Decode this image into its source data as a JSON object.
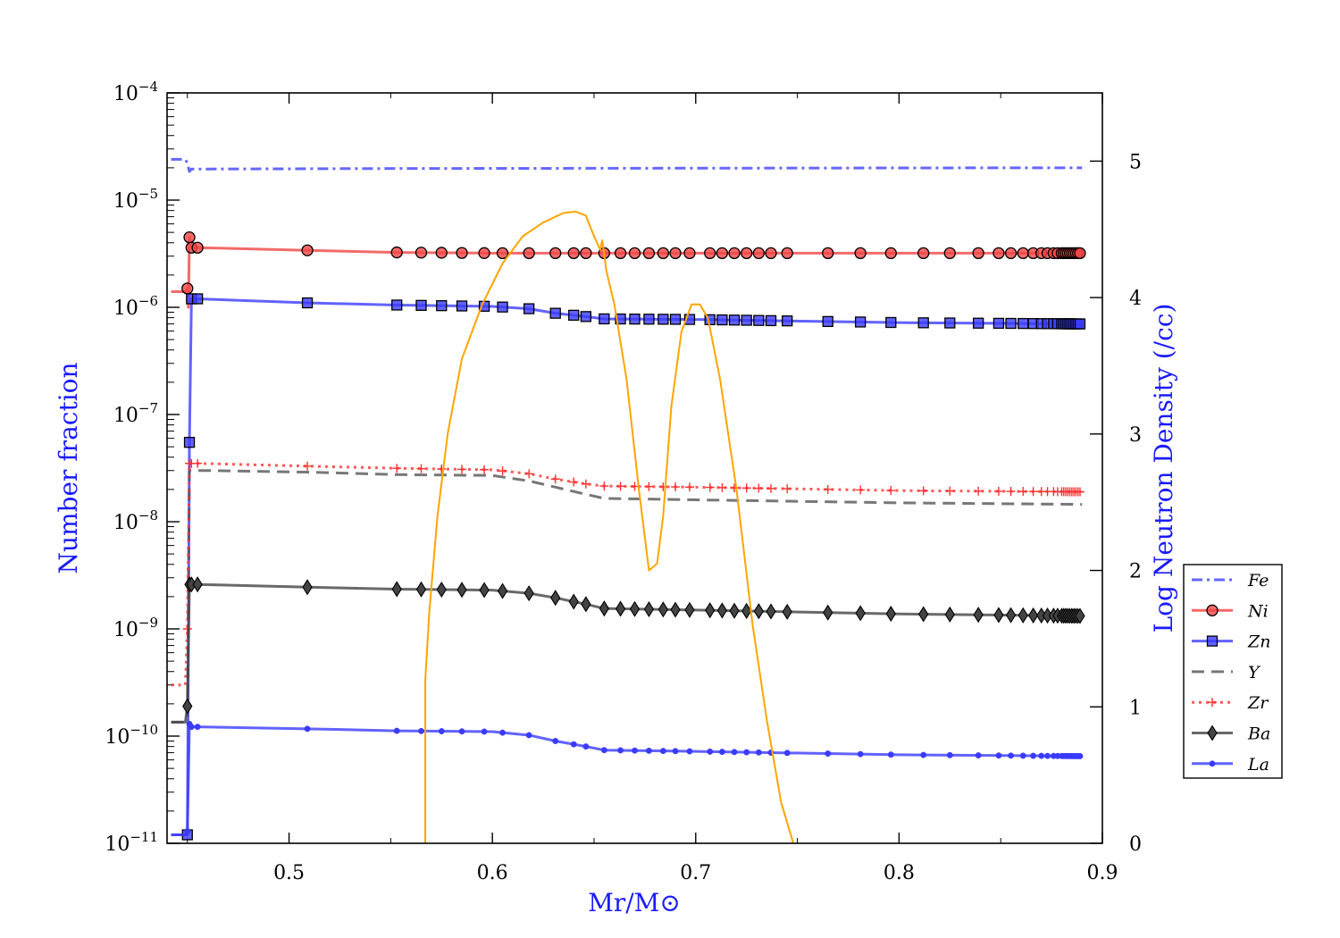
{
  "chart_data": {
    "type": "line",
    "xlabel": "Mr/M⊙",
    "ylabel": "Number fraction",
    "ylabel_right": "Log Neutron Density (/cc)",
    "xlim": [
      0.44,
      0.9
    ],
    "ylim": [
      1e-11,
      0.0001
    ],
    "yscale": "log",
    "ylim_right": [
      0,
      5.5
    ],
    "x_ticks": [
      "0.5",
      "0.6",
      "0.7",
      "0.8",
      "0.9"
    ],
    "x_tick_values": [
      0.5,
      0.6,
      0.7,
      0.8,
      0.9
    ],
    "y_ticks": [
      {
        "base": "10",
        "exp": "−11"
      },
      {
        "base": "10",
        "exp": "−10"
      },
      {
        "base": "10",
        "exp": "−9"
      },
      {
        "base": "10",
        "exp": "−8"
      },
      {
        "base": "10",
        "exp": "−7"
      },
      {
        "base": "10",
        "exp": "−6"
      },
      {
        "base": "10",
        "exp": "−5"
      },
      {
        "base": "10",
        "exp": "−4"
      }
    ],
    "y_tick_exponents": [
      -11,
      -10,
      -9,
      -8,
      -7,
      -6,
      -5,
      -4
    ],
    "y_right_ticks": [
      "0",
      "1",
      "2",
      "3",
      "4",
      "5"
    ],
    "y_right_tick_values": [
      0,
      1,
      2,
      3,
      4,
      5
    ],
    "legend_position": "lower-right",
    "legend": [
      "Fe",
      "Ni",
      "Zn",
      "Y",
      "Zr",
      "Ba",
      "La"
    ],
    "marker_x": [
      0.45,
      0.451,
      0.452,
      0.455,
      0.509,
      0.553,
      0.565,
      0.575,
      0.585,
      0.596,
      0.605,
      0.618,
      0.631,
      0.64,
      0.646,
      0.655,
      0.663,
      0.67,
      0.677,
      0.684,
      0.69,
      0.697,
      0.707,
      0.713,
      0.719,
      0.725,
      0.731,
      0.737,
      0.745,
      0.765,
      0.781,
      0.796,
      0.812,
      0.825,
      0.839,
      0.849,
      0.855,
      0.861,
      0.866,
      0.87,
      0.873,
      0.876,
      0.878,
      0.88,
      0.881,
      0.882,
      0.883,
      0.884,
      0.885,
      0.886,
      0.887,
      0.888,
      0.889
    ],
    "series": [
      {
        "name": "Fe",
        "color": "#4040ff",
        "dash": "dashdot",
        "marker": "none",
        "x": [
          0.442,
          0.449,
          0.45,
          0.451,
          0.452,
          0.46,
          0.55,
          0.65,
          0.75,
          0.85,
          0.89
        ],
        "y": [
          2.4e-05,
          2.4e-05,
          2.2e-05,
          1.85e-05,
          1.95e-05,
          1.95e-05,
          1.97e-05,
          1.98e-05,
          1.99e-05,
          2e-05,
          2e-05
        ]
      },
      {
        "name": "Ni",
        "color": "#f04545",
        "dash": "solid",
        "marker": "circle",
        "x": [
          0.442,
          0.449,
          0.45,
          0.4505,
          0.451,
          0.452,
          0.455,
          0.509,
          0.553,
          0.6,
          0.65,
          0.7,
          0.8,
          0.89
        ],
        "y": [
          1.4e-06,
          1.4e-06,
          1.5e-06,
          1e-06,
          4.5e-06,
          3.6e-06,
          3.6e-06,
          3.4e-06,
          3.25e-06,
          3.2e-06,
          3.2e-06,
          3.2e-06,
          3.2e-06,
          3.2e-06
        ]
      },
      {
        "name": "Zn",
        "color": "#3b3bff",
        "dash": "solid",
        "marker": "square",
        "x": [
          0.442,
          0.449,
          0.45,
          0.451,
          0.452,
          0.455,
          0.509,
          0.553,
          0.6,
          0.618,
          0.631,
          0.646,
          0.655,
          0.7,
          0.8,
          0.89
        ],
        "y": [
          1.2e-11,
          1.2e-11,
          1.2e-11,
          5.5e-08,
          1.2e-06,
          1.2e-06,
          1.1e-06,
          1.05e-06,
          1.02e-06,
          9.7e-07,
          8.8e-07,
          8.2e-07,
          7.8e-07,
          7.7e-07,
          7.2e-07,
          7e-07
        ]
      },
      {
        "name": "Y",
        "color": "#555555",
        "dash": "dashed",
        "marker": "none",
        "x": [
          0.442,
          0.449,
          0.45,
          0.451,
          0.452,
          0.46,
          0.509,
          0.553,
          0.6,
          0.618,
          0.631,
          0.646,
          0.655,
          0.7,
          0.8,
          0.89
        ],
        "y": [
          1.35e-10,
          1.35e-10,
          1.5e-10,
          3e-08,
          3e-08,
          3e-08,
          2.9e-08,
          2.75e-08,
          2.7e-08,
          2.4e-08,
          2.1e-08,
          1.8e-08,
          1.65e-08,
          1.6e-08,
          1.5e-08,
          1.45e-08
        ]
      },
      {
        "name": "Zr",
        "color": "#ff3030",
        "dash": "dotted",
        "marker": "plus",
        "x": [
          0.442,
          0.449,
          0.45,
          0.451,
          0.452,
          0.455,
          0.509,
          0.553,
          0.6,
          0.618,
          0.631,
          0.646,
          0.655,
          0.7,
          0.8,
          0.89
        ],
        "y": [
          3e-10,
          3e-10,
          1e-09,
          3.5e-08,
          3.5e-08,
          3.5e-08,
          3.3e-08,
          3.15e-08,
          3.05e-08,
          2.8e-08,
          2.5e-08,
          2.25e-08,
          2.15e-08,
          2.1e-08,
          1.95e-08,
          1.9e-08
        ]
      },
      {
        "name": "Ba",
        "color": "#444444",
        "dash": "solid",
        "marker": "diamond",
        "x": [
          0.442,
          0.449,
          0.45,
          0.451,
          0.452,
          0.455,
          0.509,
          0.553,
          0.6,
          0.618,
          0.631,
          0.646,
          0.655,
          0.7,
          0.8,
          0.89
        ],
        "y": [
          1.35e-10,
          1.35e-10,
          1.9e-10,
          2.6e-09,
          2.6e-09,
          2.6e-09,
          2.45e-09,
          2.35e-09,
          2.3e-09,
          2.15e-09,
          1.95e-09,
          1.7e-09,
          1.55e-09,
          1.5e-09,
          1.38e-09,
          1.32e-09
        ]
      },
      {
        "name": "La",
        "color": "#3b3bff",
        "dash": "solid",
        "marker": "dot",
        "x": [
          0.442,
          0.449,
          0.45,
          0.451,
          0.452,
          0.455,
          0.509,
          0.553,
          0.6,
          0.618,
          0.631,
          0.646,
          0.655,
          0.7,
          0.8,
          0.89
        ],
        "y": [
          1.2e-11,
          1.2e-11,
          1.3e-11,
          1.3e-10,
          1.22e-10,
          1.22e-10,
          1.17e-10,
          1.12e-10,
          1.1e-10,
          1.02e-10,
          9e-11,
          8e-11,
          7.4e-11,
          7.2e-11,
          6.7e-11,
          6.5e-11
        ]
      },
      {
        "name": "",
        "axis": "right",
        "color": "#ffa500",
        "dash": "solid",
        "marker": "none",
        "x": [
          0.567,
          0.567,
          0.569,
          0.573,
          0.578,
          0.585,
          0.595,
          0.605,
          0.615,
          0.625,
          0.635,
          0.641,
          0.646,
          0.65,
          0.653,
          0.654,
          0.655,
          0.656,
          0.66,
          0.666,
          0.672,
          0.677,
          0.681,
          0.684,
          0.688,
          0.693,
          0.698,
          0.702,
          0.706,
          0.712,
          0.72,
          0.728,
          0.735,
          0.742,
          0.748
        ],
        "y": [
          0,
          1.2,
          1.7,
          2.4,
          3.0,
          3.55,
          3.95,
          4.25,
          4.45,
          4.55,
          4.62,
          4.63,
          4.6,
          4.45,
          4.35,
          4.42,
          4.32,
          4.2,
          3.95,
          3.4,
          2.6,
          2.0,
          2.05,
          2.4,
          3.2,
          3.75,
          3.95,
          3.95,
          3.85,
          3.4,
          2.6,
          1.6,
          0.9,
          0.3,
          0
        ]
      }
    ]
  }
}
